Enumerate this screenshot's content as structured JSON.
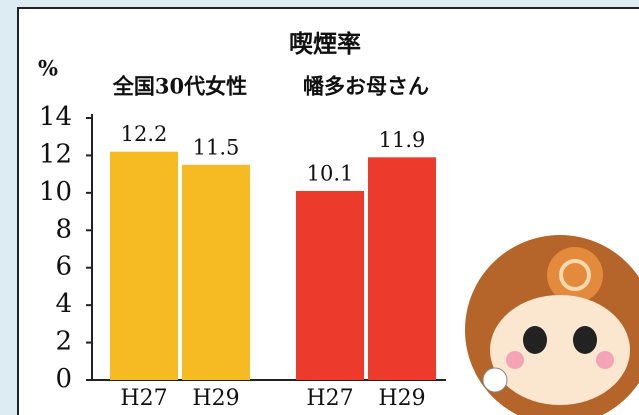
{
  "chart_data": {
    "type": "bar",
    "title": "喫煙率",
    "y_label": "%",
    "categories": [
      "H27",
      "H29"
    ],
    "series": [
      {
        "name": "全国30代女性",
        "color": "#f6bb22",
        "values": [
          12.2,
          11.5
        ]
      },
      {
        "name": "幡多お母さん",
        "color": "#ec3a2c",
        "values": [
          10.1,
          11.9
        ]
      }
    ],
    "ylim": [
      0,
      14
    ],
    "yticks": [
      0,
      2,
      4,
      6,
      8,
      10,
      12,
      14
    ]
  }
}
